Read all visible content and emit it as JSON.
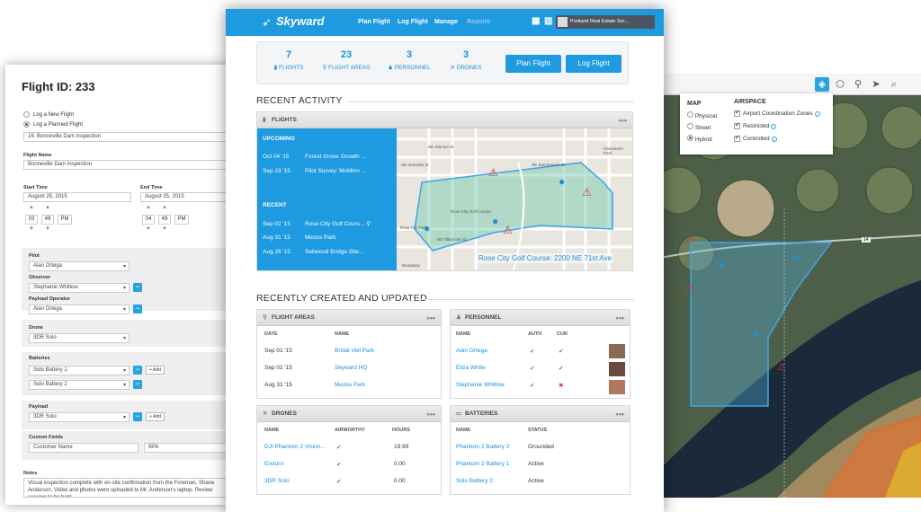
{
  "flight_form": {
    "title": "Flight ID: 233",
    "opt_new": "Log a New Flight",
    "opt_planned": "Log a Planned Flight",
    "planned_value": "16: Bonneville Dam Inspection",
    "flight_name_label": "Flight Name",
    "flight_name": "Bonneville Dam Inspection",
    "start_label": "Start Time",
    "start_date": "August 25, 2015",
    "end_label": "End Time",
    "end_date": "August 25, 2015",
    "start_h": "03",
    "start_m": "49",
    "start_ap": "PM",
    "end_h": "04",
    "end_m": "49",
    "end_ap": "PM",
    "pilot_label": "Pilot",
    "pilot": "Alan Ortega",
    "observer_label": "Observer",
    "observer": "Stephanie Whitlow",
    "payload_op_label": "Payload Operator",
    "payload_op": "Alan Ortega",
    "drone_label": "Drone",
    "drone": "3DR Solo",
    "batteries_label": "Batteries",
    "battery1": "Solo Battery 1",
    "battery2": "Solo Battery 2",
    "payload_label": "Payload",
    "payload": "3DR Solo",
    "add": "+ Add",
    "custom_label": "Custom Fields",
    "custom_name": "Customer Name",
    "custom_value": "BPA",
    "notes_label": "Notes",
    "notes": "Visual inspection complete with on-site confirmation from the Foreman, Shane Anderson.",
    "notes2": "Video and photos were uploaded to Mr. Anderson's laptop. Review session to be held"
  },
  "app": {
    "brand": "Skyward",
    "nav": [
      "Plan Flight",
      "Log Flight",
      "Manage",
      "Reports"
    ],
    "account": "Portland Real Estate Ser..."
  },
  "stats": [
    {
      "n": "7",
      "l": "FLIGHTS"
    },
    {
      "n": "23",
      "l": "FLIGHT AREAS"
    },
    {
      "n": "3",
      "l": "PERSONNEL"
    },
    {
      "n": "3",
      "l": "DRONES"
    }
  ],
  "buttons": {
    "plan": "Plan Flight",
    "log": "Log Flight"
  },
  "recent": {
    "heading": "RECENT ACTIVITY",
    "panel": "FLIGHTS",
    "upcoming": "UPCOMING",
    "recent": "RECENT",
    "up": [
      {
        "d": "Oct 04 '15",
        "t": "Forest Grove Growth ..."
      },
      {
        "d": "Sep 23 '15",
        "t": "Pilot Survey: McMinn ..."
      }
    ],
    "rec": [
      {
        "d": "Sep 02 '15",
        "t": "Rose City Golf Cours..."
      },
      {
        "d": "Aug 31 '15",
        "t": "Mezes Park"
      },
      {
        "d": "Aug 26 '15",
        "t": "Sellwood Bridge Site..."
      }
    ],
    "map_caption": "Rose City Golf Course: 2200 NE 71st Ave",
    "streets": [
      "NE Stanton St",
      "NE Siskiyou St",
      "NE Alameda St",
      "NE Sacramento St",
      "NE Alameda St",
      "Glenhaven Park",
      "NE Tillamook St",
      "NE Thompson St",
      "Rose City Golf Course",
      "Rose City Park",
      "NE 65th Ave",
      "NE 72nd Ave",
      "NE 77th Pl",
      "Broadway"
    ]
  },
  "created": {
    "heading": "RECENTLY CREATED AND UPDATED",
    "areas": {
      "title": "FLIGHT AREAS",
      "cols": [
        "DATE",
        "NAME"
      ],
      "rows": [
        {
          "d": "Sep 01 '15",
          "n": "Bridal Veil Park"
        },
        {
          "d": "Sep 01 '15",
          "n": "Skyward HQ"
        },
        {
          "d": "Aug 31 '15",
          "n": "Mezes Park"
        }
      ]
    },
    "personnel": {
      "title": "PERSONNEL",
      "cols": [
        "NAME",
        "AUTH",
        "CUR"
      ],
      "rows": [
        {
          "n": "Alan Ortega",
          "a": "✔",
          "c": "✔"
        },
        {
          "n": "Eliza White",
          "a": "✔",
          "c": "✔"
        },
        {
          "n": "Stephanie Whitlow",
          "a": "✔",
          "c": "✖"
        }
      ]
    },
    "drones": {
      "title": "DRONES",
      "cols": [
        "NAME",
        "AIRWORTHY",
        "HOURS"
      ],
      "rows": [
        {
          "n": "DJI Phantom 2 Vision...",
          "a": "✔",
          "h": "19.99"
        },
        {
          "n": "Enduro",
          "a": "✔",
          "h": "0.00"
        },
        {
          "n": "3DR Solo",
          "a": "✔",
          "h": "0.00"
        }
      ]
    },
    "batteries": {
      "title": "BATTERIES",
      "cols": [
        "NAME",
        "STATUS"
      ],
      "rows": [
        {
          "n": "Phantom 2 Battery 2",
          "s": "Grounded"
        },
        {
          "n": "Phantom 2 Battery 1",
          "s": "Active"
        },
        {
          "n": "Solo Battery 2",
          "s": "Active"
        }
      ]
    }
  },
  "map": {
    "map_head": "MAP",
    "airspace_head": "AIRSPACE",
    "map_opts": [
      "Physical",
      "Street",
      "Hybrid"
    ],
    "airspace_opts": [
      "Airport Coordination Zones",
      "Restricted",
      "Controlled"
    ],
    "road_label": "14"
  },
  "colors": {
    "brand": "#1d9ae0",
    "ok": "#2a9a3a",
    "bad": "#d9362b"
  }
}
